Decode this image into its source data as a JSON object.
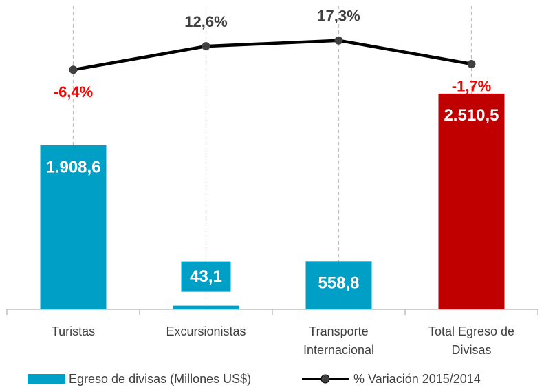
{
  "chart_data": {
    "type": "bar-line",
    "categories": [
      "Turistas",
      "Excursionistas",
      "Transporte Internacional",
      "Total Egreso de Divisas"
    ],
    "series": [
      {
        "name": "Egreso de divisas (Millones US$)",
        "type": "bar",
        "color": "#00a0c6",
        "colors": [
          "#00a0c6",
          "#00a0c6",
          "#00a0c6",
          "#c00000"
        ],
        "values": [
          1908.6,
          43.1,
          558.8,
          2510.5
        ],
        "value_labels": [
          "1.908,6",
          "43,1",
          "558,8",
          "2.510,5"
        ]
      },
      {
        "name": "% Variación 2015/2014",
        "type": "line",
        "axis": "y2",
        "color": "#000000",
        "values": [
          -6.4,
          12.6,
          17.3,
          -1.7
        ],
        "value_labels": [
          "-6,4%",
          "12,6%",
          "17,3%",
          "-1,7%"
        ],
        "negative_color": "#ff0000"
      }
    ],
    "ylim": [
      0,
      3600
    ],
    "y2lim": [
      -200,
      50
    ],
    "legend": "bottom"
  }
}
